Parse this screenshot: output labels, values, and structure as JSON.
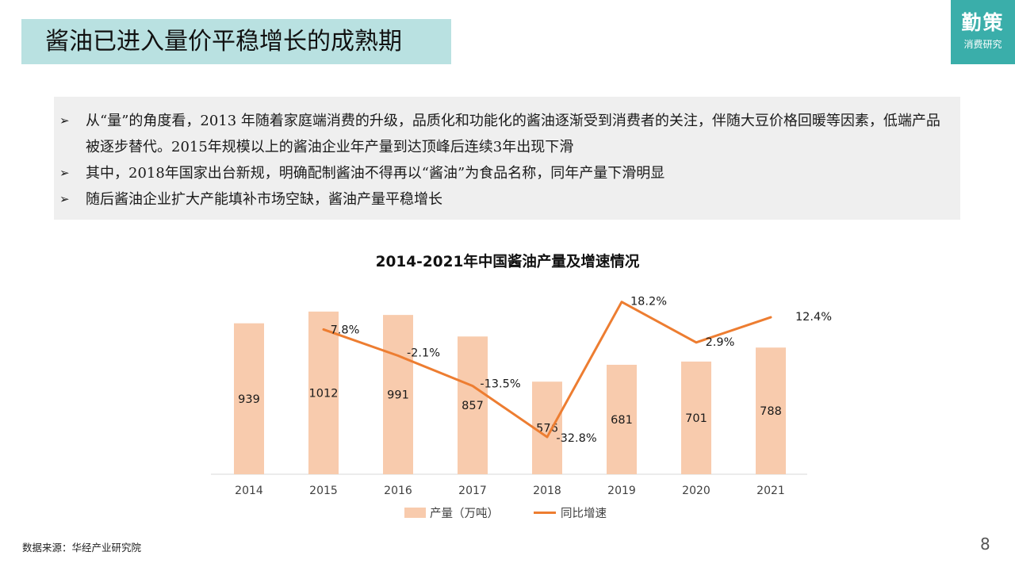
{
  "slide": {
    "title": "酱油已进入量价平稳增长的成熟期",
    "logo_main": "勤策",
    "logo_sub": "消费研究",
    "bullet_marker": "➢",
    "bullets": [
      "从“量”的角度看，2013 年随着家庭端消费的升级，品质化和功能化的酱油逐渐受到消费者的关注，伴随大豆价格回暖等因素，低端产品被逐步替代。2015年规模以上的酱油企业年产量到达顶峰后连续3年出现下滑",
      "其中，2018年国家出台新规，明确配制酱油不得再以“酱油”为食品名称，同年产量下滑明显",
      "随后酱油企业扩大产能填补市场空缺，酱油产量平稳增长"
    ],
    "source": "数据来源：华经产业研究院",
    "page_number": "8"
  },
  "colors": {
    "title_bg": "#b9e1e1",
    "logo_bg": "#3aaeaa",
    "bar": "#f8cbad",
    "line": "#ed7d31",
    "bullet_bg": "#efefef"
  },
  "chart_data": {
    "type": "bar+line",
    "title": "2014-2021年中国酱油产量及增速情况",
    "categories": [
      "2014",
      "2015",
      "2016",
      "2017",
      "2018",
      "2019",
      "2020",
      "2021"
    ],
    "series": [
      {
        "name": "产量（万吨）",
        "type": "bar",
        "values": [
          939,
          1012,
          991,
          857,
          576,
          681,
          701,
          788
        ],
        "labels": [
          "939",
          "1012",
          "991",
          "857",
          "576",
          "681",
          "701",
          "788"
        ]
      },
      {
        "name": "同比增速",
        "type": "line",
        "values": [
          null,
          7.8,
          -2.1,
          -13.5,
          -32.8,
          18.2,
          2.9,
          12.4
        ],
        "labels": [
          "",
          "7.8%",
          "-2.1%",
          "-13.5%",
          "-32.8%",
          "18.2%",
          "2.9%",
          "12.4%"
        ]
      }
    ],
    "bar_axis_range": [
      0,
      1100
    ],
    "line_axis_range": [
      -40,
      25
    ],
    "axes_visible": false,
    "grid": false,
    "legend_position": "bottom"
  }
}
